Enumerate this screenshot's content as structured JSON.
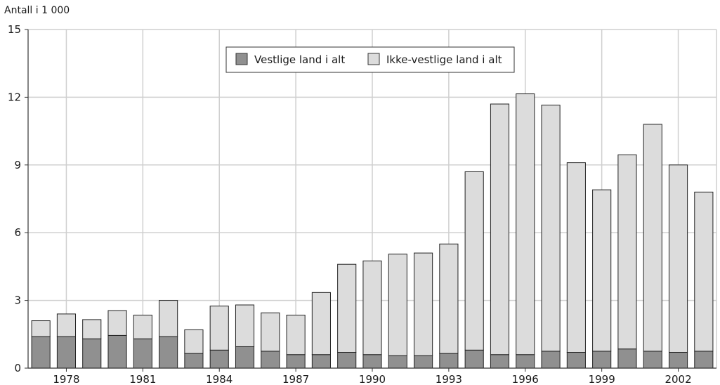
{
  "chart_data": {
    "type": "bar",
    "stacked": true,
    "ylabel": "Antall i 1 000",
    "ylim": [
      0,
      15
    ],
    "yticks": [
      0,
      3,
      6,
      9,
      12,
      15
    ],
    "grid": true,
    "legend_position": "top-center",
    "categories": [
      "1977",
      "1978",
      "1979",
      "1980",
      "1981",
      "1982",
      "1983",
      "1984",
      "1985",
      "1986",
      "1987",
      "1988",
      "1989",
      "1990",
      "1991",
      "1992",
      "1993",
      "1994",
      "1995",
      "1996",
      "1997",
      "1998",
      "1999",
      "2000",
      "2001",
      "2002",
      "2003"
    ],
    "xtick_labels": [
      "1978",
      "1981",
      "1984",
      "1987",
      "1990",
      "1993",
      "1996",
      "1999",
      "2002"
    ],
    "series": [
      {
        "name": "Vestlige land i alt",
        "color": "#909090",
        "values": [
          1.4,
          1.4,
          1.3,
          1.45,
          1.3,
          1.4,
          0.65,
          0.8,
          0.95,
          0.75,
          0.6,
          0.6,
          0.7,
          0.6,
          0.55,
          0.55,
          0.65,
          0.8,
          0.6,
          0.6,
          0.75,
          0.7,
          0.75,
          0.85,
          0.75,
          0.7,
          0.75
        ]
      },
      {
        "name": "Ikke-vestlige land i alt",
        "color": "#dcdcdc",
        "values": [
          0.7,
          1.0,
          0.85,
          1.1,
          1.05,
          1.6,
          1.05,
          1.95,
          1.85,
          1.7,
          1.75,
          2.75,
          3.9,
          4.15,
          4.5,
          4.55,
          4.85,
          7.9,
          11.1,
          11.55,
          10.9,
          8.4,
          7.15,
          8.6,
          10.05,
          8.3,
          7.05
        ]
      }
    ]
  }
}
